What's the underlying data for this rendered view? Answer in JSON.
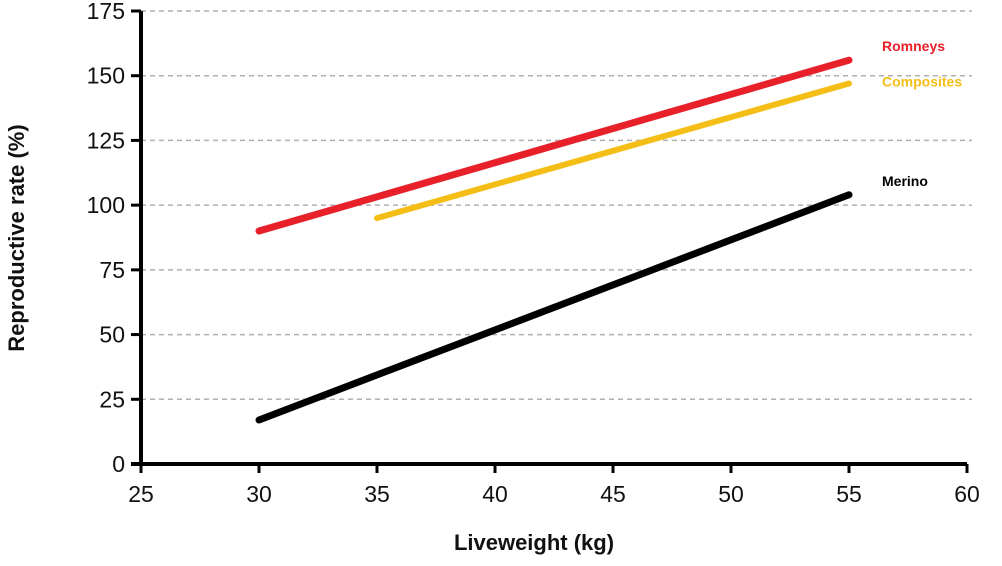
{
  "chart_data": {
    "type": "line",
    "title": "",
    "xlabel": "Liveweight (kg)",
    "ylabel": "Reproductive rate (%)",
    "xlim": [
      25,
      60
    ],
    "ylim": [
      0,
      175
    ],
    "xticks": [
      25,
      30,
      35,
      40,
      45,
      50,
      55,
      60
    ],
    "yticks": [
      0,
      25,
      50,
      75,
      100,
      125,
      150,
      175
    ],
    "grid": "horizontal dashed",
    "legend": "direct labels at line ends (right)",
    "series": [
      {
        "name": "Romneys",
        "color": "#e8202a",
        "x": [
          30,
          55
        ],
        "y": [
          90,
          156
        ]
      },
      {
        "name": "Composites",
        "color": "#f5be17",
        "x": [
          35,
          55
        ],
        "y": [
          95,
          147
        ]
      },
      {
        "name": "Merino",
        "color": "#000000",
        "x": [
          30,
          55
        ],
        "y": [
          17,
          104
        ]
      }
    ]
  }
}
